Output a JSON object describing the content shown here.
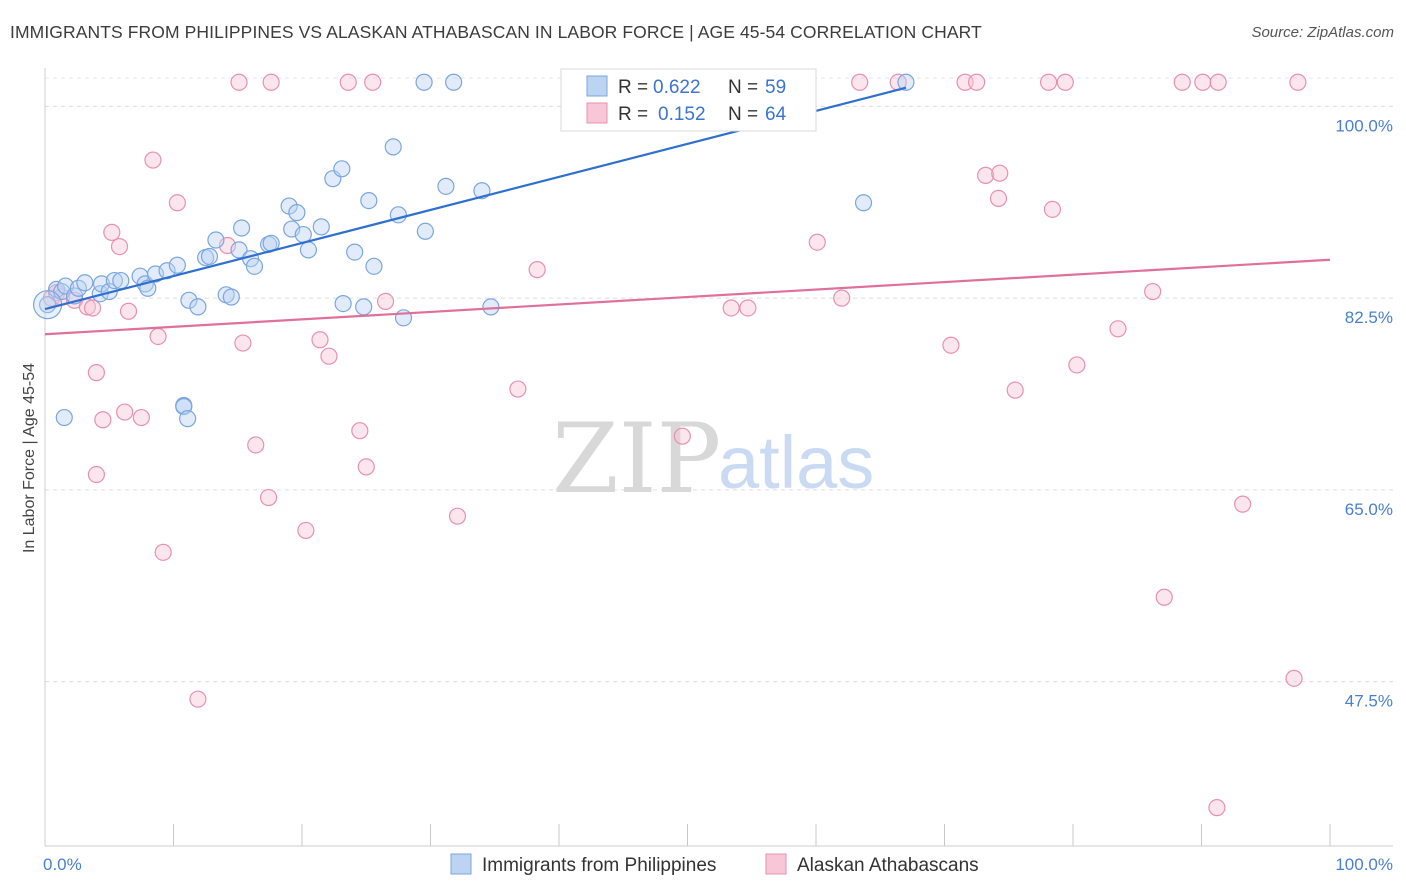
{
  "title": "IMMIGRANTS FROM PHILIPPINES VS ALASKAN ATHABASCAN IN LABOR FORCE | AGE 45-54 CORRELATION CHART",
  "source": "Source: ZipAtlas.com",
  "watermark": {
    "zip": "ZIP",
    "atlas": "atlas"
  },
  "colors": {
    "blue": "#7aa6e0",
    "blue_fill": "#bcd3f2",
    "blue_line": "#2f6fd0",
    "pink": "#e891ae",
    "pink_fill": "#f7c7d7",
    "pink_line": "#e0709a",
    "tick": "#4a7fd0"
  },
  "legend": {
    "r_label": "R =",
    "n_label": "N =",
    "rows": [
      {
        "r": "0.622",
        "n": "59",
        "color": "blue"
      },
      {
        "r": "0.152",
        "n": "64",
        "color": "pink"
      }
    ]
  },
  "bottom_legend": [
    {
      "label": "Immigrants from Philippines",
      "color": "blue"
    },
    {
      "label": "Alaskan Athabascans",
      "color": "pink"
    }
  ],
  "chart_data": {
    "type": "scatter",
    "xlabel": "",
    "ylabel": "In Labor Force | Age 45-54",
    "xlim": [
      0,
      100
    ],
    "ylim": [
      32.5,
      103.5
    ],
    "y_ticks": [
      {
        "value": 100,
        "label": "100.0%"
      },
      {
        "value": 82.5,
        "label": "82.5%"
      },
      {
        "value": 65,
        "label": "65.0%"
      },
      {
        "value": 47.5,
        "label": "47.5%"
      }
    ],
    "x_tick_labels": [
      {
        "value": 0,
        "label": "0.0%"
      },
      {
        "value": 100,
        "label": "100.0%"
      }
    ],
    "x_minor_ticks": [
      10,
      20,
      30,
      40,
      50,
      60,
      70,
      80,
      90,
      100
    ],
    "grid": true,
    "series": [
      {
        "name": "Immigrants from Philippines",
        "color": "blue",
        "trend": {
          "x": [
            0,
            67
          ],
          "y": [
            81.5,
            101.7
          ]
        },
        "points": [
          [
            0.2,
            81.9
          ],
          [
            0.9,
            83.3
          ],
          [
            1.3,
            83.1
          ],
          [
            1.6,
            83.6
          ],
          [
            2.3,
            82.7
          ],
          [
            2.6,
            83.4
          ],
          [
            3.1,
            83.9
          ],
          [
            4.3,
            82.9
          ],
          [
            4.4,
            83.8
          ],
          [
            5.0,
            83.1
          ],
          [
            5.4,
            84.1
          ],
          [
            5.9,
            84.1
          ],
          [
            7.4,
            84.5
          ],
          [
            7.8,
            83.8
          ],
          [
            8.0,
            83.4
          ],
          [
            8.6,
            84.7
          ],
          [
            9.5,
            85.0
          ],
          [
            10.3,
            85.5
          ],
          [
            11.2,
            82.3
          ],
          [
            11.9,
            81.7
          ],
          [
            12.5,
            86.2
          ],
          [
            12.8,
            86.3
          ],
          [
            13.3,
            87.8
          ],
          [
            14.1,
            82.8
          ],
          [
            14.5,
            82.6
          ],
          [
            15.1,
            86.9
          ],
          [
            15.3,
            88.9
          ],
          [
            16.0,
            86.1
          ],
          [
            16.3,
            85.4
          ],
          [
            17.4,
            87.4
          ],
          [
            17.6,
            87.5
          ],
          [
            19.0,
            90.9
          ],
          [
            19.2,
            88.8
          ],
          [
            19.6,
            90.3
          ],
          [
            20.1,
            88.3
          ],
          [
            20.5,
            86.9
          ],
          [
            21.5,
            89.0
          ],
          [
            22.4,
            93.4
          ],
          [
            23.1,
            94.3
          ],
          [
            23.2,
            82.0
          ],
          [
            24.1,
            86.7
          ],
          [
            24.8,
            81.7
          ],
          [
            25.2,
            91.4
          ],
          [
            25.6,
            85.4
          ],
          [
            27.1,
            96.3
          ],
          [
            27.5,
            90.1
          ],
          [
            27.9,
            80.7
          ],
          [
            29.6,
            88.6
          ],
          [
            29.5,
            102.2
          ],
          [
            31.2,
            92.7
          ],
          [
            31.8,
            102.2
          ],
          [
            34.0,
            92.3
          ],
          [
            34.7,
            81.7
          ],
          [
            63.7,
            91.2
          ],
          [
            67.0,
            102.2
          ],
          [
            1.5,
            71.6
          ],
          [
            10.8,
            72.7
          ],
          [
            10.8,
            72.6
          ],
          [
            11.1,
            71.5
          ]
        ]
      },
      {
        "name": "Alaskan Athabascans",
        "color": "pink",
        "trend": {
          "x": [
            0,
            100
          ],
          "y": [
            79.2,
            86.0
          ]
        },
        "points": [
          [
            0.5,
            82.5
          ],
          [
            0.9,
            83.0
          ],
          [
            1.3,
            82.6
          ],
          [
            2.3,
            82.3
          ],
          [
            3.3,
            81.7
          ],
          [
            3.7,
            81.6
          ],
          [
            4.0,
            75.7
          ],
          [
            4.0,
            66.4
          ],
          [
            4.5,
            71.4
          ],
          [
            5.2,
            88.5
          ],
          [
            5.8,
            87.2
          ],
          [
            6.2,
            72.1
          ],
          [
            6.5,
            81.3
          ],
          [
            7.5,
            71.6
          ],
          [
            8.4,
            95.1
          ],
          [
            8.8,
            79.0
          ],
          [
            9.2,
            59.3
          ],
          [
            10.3,
            91.2
          ],
          [
            11.9,
            45.9
          ],
          [
            14.2,
            87.3
          ],
          [
            15.4,
            78.4
          ],
          [
            15.1,
            102.2
          ],
          [
            16.4,
            69.1
          ],
          [
            17.4,
            64.3
          ],
          [
            17.6,
            102.2
          ],
          [
            20.3,
            61.3
          ],
          [
            21.4,
            78.7
          ],
          [
            22.1,
            77.2
          ],
          [
            23.6,
            102.2
          ],
          [
            24.5,
            70.4
          ],
          [
            25.5,
            102.2
          ],
          [
            26.5,
            82.2
          ],
          [
            25.0,
            67.1
          ],
          [
            32.1,
            62.6
          ],
          [
            36.8,
            74.2
          ],
          [
            38.3,
            85.1
          ],
          [
            49.6,
            69.9
          ],
          [
            53.4,
            81.6
          ],
          [
            54.7,
            81.6
          ],
          [
            60.1,
            87.6
          ],
          [
            62.0,
            82.5
          ],
          [
            63.4,
            102.2
          ],
          [
            66.4,
            102.2
          ],
          [
            70.5,
            78.2
          ],
          [
            71.6,
            102.2
          ],
          [
            72.5,
            102.2
          ],
          [
            73.2,
            93.7
          ],
          [
            74.2,
            91.6
          ],
          [
            74.3,
            93.9
          ],
          [
            75.5,
            74.1
          ],
          [
            78.1,
            102.2
          ],
          [
            78.4,
            90.6
          ],
          [
            79.4,
            102.2
          ],
          [
            80.3,
            76.4
          ],
          [
            83.5,
            79.7
          ],
          [
            86.2,
            83.1
          ],
          [
            87.1,
            55.2
          ],
          [
            88.5,
            102.2
          ],
          [
            90.1,
            102.2
          ],
          [
            91.2,
            36.0
          ],
          [
            91.3,
            102.2
          ],
          [
            93.2,
            63.7
          ],
          [
            97.2,
            47.8
          ],
          [
            97.5,
            102.2
          ]
        ]
      }
    ]
  }
}
